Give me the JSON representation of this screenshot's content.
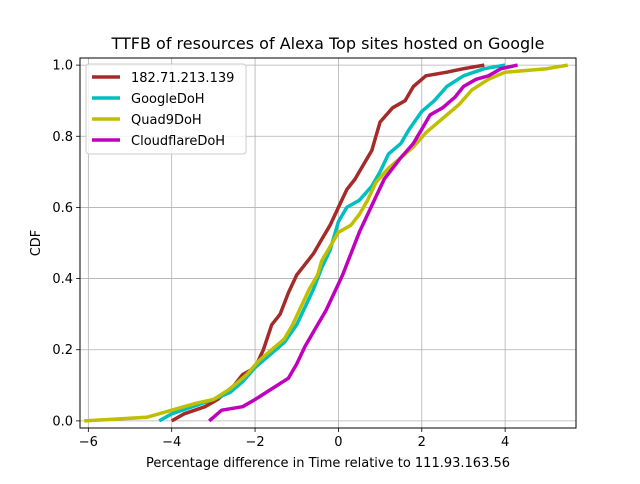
{
  "chart_data": {
    "type": "line",
    "title": "TTFB of resources of Alexa Top sites hosted on Google",
    "xlabel": "Percentage difference in Time relative to 111.93.163.56",
    "ylabel": "CDF",
    "xlim": [
      -6.2,
      5.7
    ],
    "ylim": [
      -0.02,
      1.02
    ],
    "xticks": [
      -6,
      -4,
      -2,
      0,
      2,
      4
    ],
    "xtick_labels": [
      "−6",
      "−4",
      "−2",
      "0",
      "2",
      "4"
    ],
    "yticks": [
      0.0,
      0.2,
      0.4,
      0.6,
      0.8,
      1.0
    ],
    "ytick_labels": [
      "0.0",
      "0.2",
      "0.4",
      "0.6",
      "0.8",
      "1.0"
    ],
    "grid": true,
    "legend_position": "upper-left",
    "series": [
      {
        "name": "182.71.213.139",
        "color": "#a52a2a",
        "points": [
          [
            -4.0,
            0.0
          ],
          [
            -3.7,
            0.02
          ],
          [
            -3.2,
            0.04
          ],
          [
            -2.9,
            0.06
          ],
          [
            -2.5,
            0.1
          ],
          [
            -2.3,
            0.13
          ],
          [
            -2.0,
            0.15
          ],
          [
            -1.8,
            0.2
          ],
          [
            -1.6,
            0.27
          ],
          [
            -1.4,
            0.3
          ],
          [
            -1.2,
            0.36
          ],
          [
            -1.0,
            0.41
          ],
          [
            -0.8,
            0.44
          ],
          [
            -0.6,
            0.47
          ],
          [
            -0.4,
            0.51
          ],
          [
            -0.2,
            0.55
          ],
          [
            0.0,
            0.6
          ],
          [
            0.2,
            0.65
          ],
          [
            0.4,
            0.68
          ],
          [
            0.6,
            0.72
          ],
          [
            0.8,
            0.76
          ],
          [
            0.9,
            0.8
          ],
          [
            1.0,
            0.84
          ],
          [
            1.3,
            0.88
          ],
          [
            1.6,
            0.9
          ],
          [
            1.8,
            0.94
          ],
          [
            2.1,
            0.97
          ],
          [
            2.6,
            0.98
          ],
          [
            3.0,
            0.99
          ],
          [
            3.5,
            1.0
          ]
        ]
      },
      {
        "name": "GoogleDoH",
        "color": "#00bfbf",
        "points": [
          [
            -4.3,
            0.0
          ],
          [
            -4.0,
            0.02
          ],
          [
            -3.5,
            0.04
          ],
          [
            -3.0,
            0.06
          ],
          [
            -2.6,
            0.08
          ],
          [
            -2.3,
            0.11
          ],
          [
            -2.0,
            0.15
          ],
          [
            -1.7,
            0.18
          ],
          [
            -1.3,
            0.22
          ],
          [
            -1.0,
            0.27
          ],
          [
            -0.8,
            0.32
          ],
          [
            -0.6,
            0.37
          ],
          [
            -0.4,
            0.43
          ],
          [
            -0.2,
            0.48
          ],
          [
            0.0,
            0.56
          ],
          [
            0.2,
            0.6
          ],
          [
            0.5,
            0.62
          ],
          [
            0.8,
            0.66
          ],
          [
            1.0,
            0.7
          ],
          [
            1.2,
            0.75
          ],
          [
            1.5,
            0.78
          ],
          [
            1.7,
            0.82
          ],
          [
            2.0,
            0.87
          ],
          [
            2.3,
            0.9
          ],
          [
            2.6,
            0.94
          ],
          [
            3.0,
            0.97
          ],
          [
            3.5,
            0.99
          ],
          [
            4.0,
            1.0
          ]
        ]
      },
      {
        "name": "Quad9DoH",
        "color": "#bfbf00",
        "points": [
          [
            -6.1,
            0.0
          ],
          [
            -4.6,
            0.01
          ],
          [
            -4.0,
            0.03
          ],
          [
            -3.4,
            0.05
          ],
          [
            -3.0,
            0.06
          ],
          [
            -2.6,
            0.09
          ],
          [
            -2.2,
            0.13
          ],
          [
            -1.9,
            0.17
          ],
          [
            -1.6,
            0.2
          ],
          [
            -1.3,
            0.23
          ],
          [
            -1.1,
            0.27
          ],
          [
            -0.9,
            0.32
          ],
          [
            -0.7,
            0.37
          ],
          [
            -0.5,
            0.41
          ],
          [
            -0.4,
            0.45
          ],
          [
            -0.2,
            0.49
          ],
          [
            0.0,
            0.53
          ],
          [
            0.3,
            0.55
          ],
          [
            0.5,
            0.58
          ],
          [
            0.7,
            0.62
          ],
          [
            0.9,
            0.67
          ],
          [
            1.2,
            0.71
          ],
          [
            1.5,
            0.74
          ],
          [
            1.8,
            0.77
          ],
          [
            2.1,
            0.81
          ],
          [
            2.5,
            0.85
          ],
          [
            2.9,
            0.89
          ],
          [
            3.2,
            0.93
          ],
          [
            3.6,
            0.96
          ],
          [
            4.0,
            0.98
          ],
          [
            5.0,
            0.99
          ],
          [
            5.5,
            1.0
          ]
        ]
      },
      {
        "name": "CloudflareDoH",
        "color": "#bf00bf",
        "points": [
          [
            -3.1,
            0.0
          ],
          [
            -2.8,
            0.03
          ],
          [
            -2.3,
            0.04
          ],
          [
            -2.0,
            0.06
          ],
          [
            -1.6,
            0.09
          ],
          [
            -1.2,
            0.12
          ],
          [
            -1.0,
            0.16
          ],
          [
            -0.8,
            0.21
          ],
          [
            -0.5,
            0.27
          ],
          [
            -0.3,
            0.31
          ],
          [
            -0.1,
            0.36
          ],
          [
            0.1,
            0.41
          ],
          [
            0.3,
            0.47
          ],
          [
            0.5,
            0.53
          ],
          [
            0.7,
            0.58
          ],
          [
            0.9,
            0.63
          ],
          [
            1.1,
            0.68
          ],
          [
            1.3,
            0.71
          ],
          [
            1.5,
            0.74
          ],
          [
            1.8,
            0.78
          ],
          [
            2.0,
            0.82
          ],
          [
            2.2,
            0.86
          ],
          [
            2.5,
            0.88
          ],
          [
            2.8,
            0.91
          ],
          [
            3.0,
            0.94
          ],
          [
            3.3,
            0.96
          ],
          [
            3.6,
            0.97
          ],
          [
            3.9,
            0.99
          ],
          [
            4.3,
            1.0
          ]
        ]
      }
    ]
  }
}
